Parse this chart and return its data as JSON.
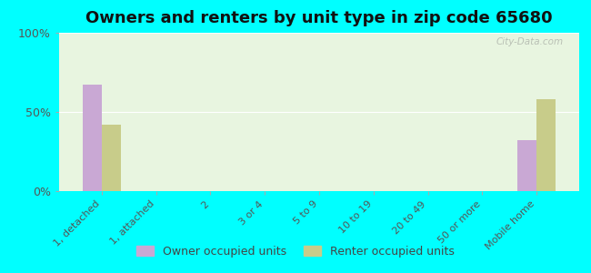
{
  "title": "Owners and renters by unit type in zip code 65680",
  "categories": [
    "1, detached",
    "1, attached",
    "2",
    "3 or 4",
    "5 to 9",
    "10 to 19",
    "20 to 49",
    "50 or more",
    "Mobile home"
  ],
  "owner_values": [
    67,
    0,
    0,
    0,
    0,
    0,
    0,
    0,
    32
  ],
  "renter_values": [
    42,
    0,
    0,
    0,
    0,
    0,
    0,
    0,
    58
  ],
  "owner_color": "#c9a8d4",
  "renter_color": "#c8cc8a",
  "ylim": [
    0,
    100
  ],
  "yticks": [
    0,
    50,
    100
  ],
  "ytick_labels": [
    "0%",
    "50%",
    "100%"
  ],
  "plot_bg_color": "#e8f5e0",
  "outer_background": "#00ffff",
  "legend_bg": "#00ffff",
  "bar_width": 0.35,
  "title_fontsize": 13,
  "watermark": "City-Data.com"
}
